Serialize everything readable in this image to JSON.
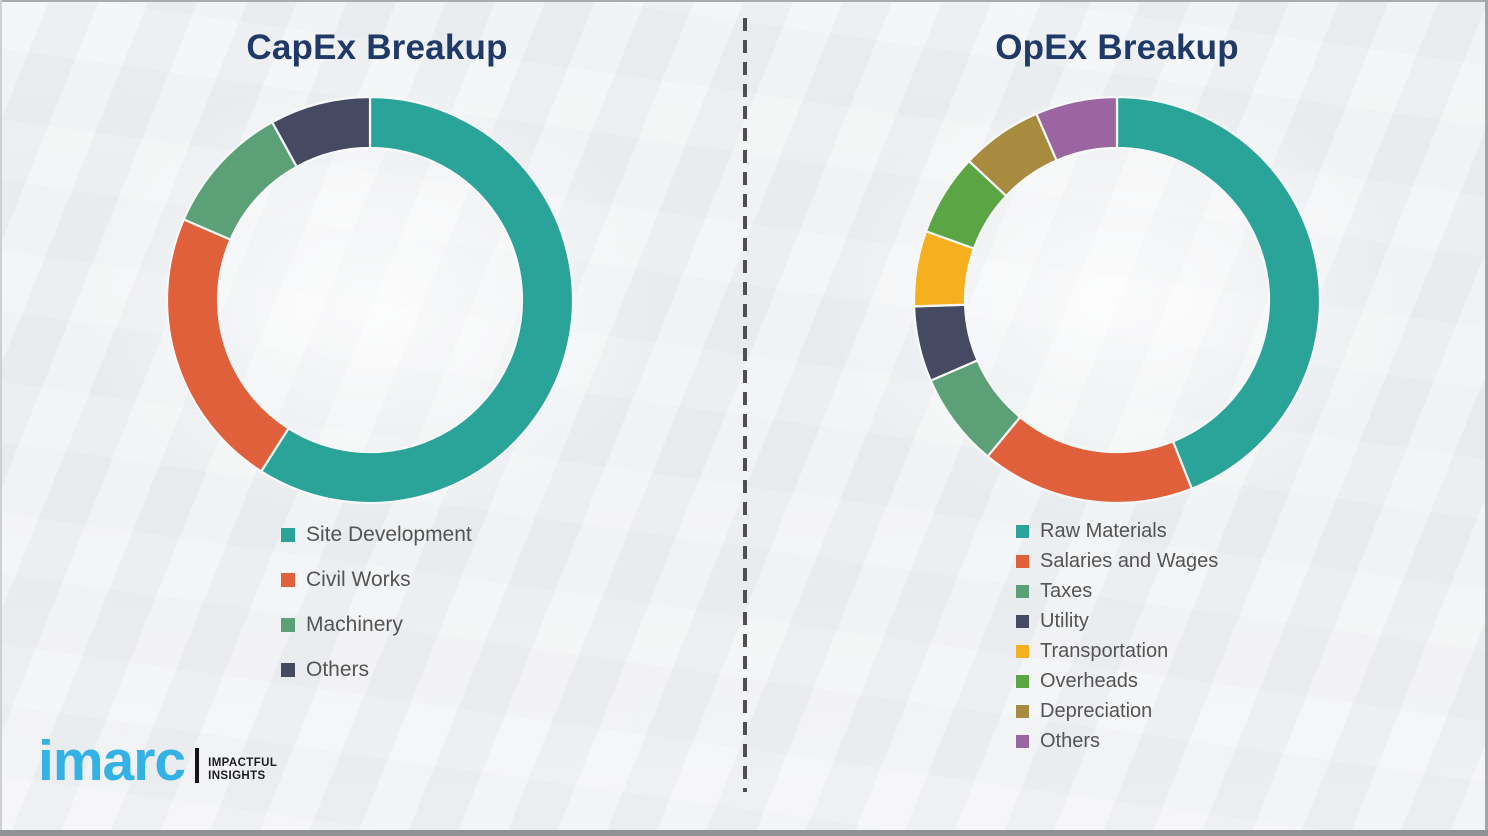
{
  "chart_data": [
    {
      "type": "donut",
      "title": "CapEx Breakup",
      "labels": [
        "Site Development",
        "Civil Works",
        "Machinery",
        "Others"
      ],
      "values": [
        59,
        22.5,
        10.5,
        8
      ],
      "unit": "percent (estimated from arc angles; no data labels shown)",
      "colors": [
        "#2aa499",
        "#e0603c",
        "#5ca078",
        "#454a62"
      ],
      "start_angle_deg": 0,
      "direction": "clockwise",
      "legend_position": "bottom-left"
    },
    {
      "type": "donut",
      "title": "OpEx Breakup",
      "labels": [
        "Raw Materials",
        "Salaries and Wages",
        "Taxes",
        "Utility",
        "Transportation",
        "Overheads",
        "Depreciation",
        "Others"
      ],
      "values": [
        44,
        17,
        7.5,
        6,
        6,
        6.5,
        6.5,
        6.5
      ],
      "unit": "percent (estimated from arc angles; no data labels shown)",
      "colors": [
        "#2aa499",
        "#e0603c",
        "#5ca078",
        "#454a62",
        "#f6b01f",
        "#5ba545",
        "#a98b3f",
        "#9a65a0"
      ],
      "start_angle_deg": 0,
      "direction": "clockwise",
      "legend_position": "bottom-left"
    }
  ],
  "titles": {
    "title_color": "#1f3a68"
  },
  "logo": {
    "brand": "imarc",
    "tagline_line1": "IMPACTFUL",
    "tagline_line2": "INSIGHTS",
    "brand_color": "#35b2e5"
  }
}
